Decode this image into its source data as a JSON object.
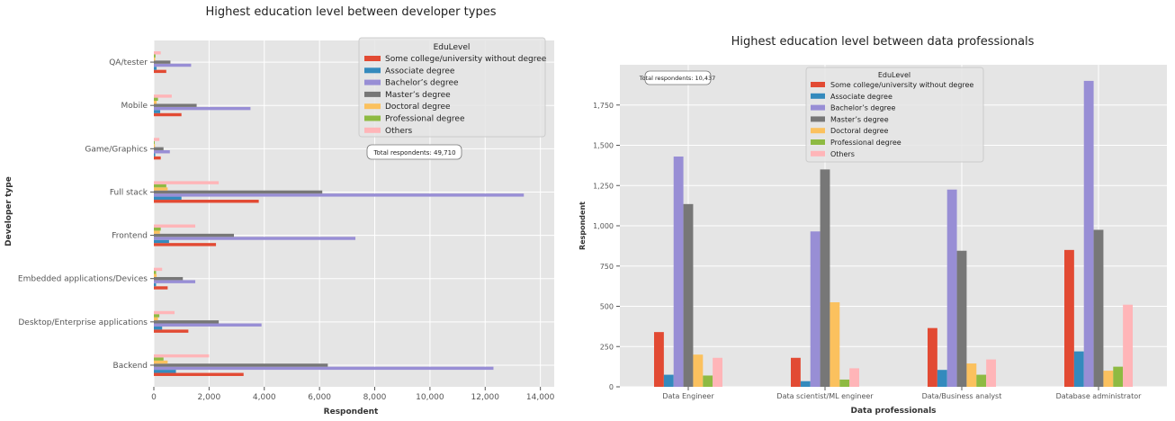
{
  "colors": {
    "Some college/university without degree": "#E24A33",
    "Associate degree": "#348ABD",
    "Bachelor’s degree": "#988ED5",
    "Master’s degree": "#777777",
    "Doctoral degree": "#FBC15E",
    "Professional degree": "#8EBA42",
    "Others": "#FFB5B8"
  },
  "chart_data": [
    {
      "type": "bar",
      "orientation": "horizontal",
      "title": "Highest education level between developer types",
      "xlabel": "Respondent",
      "ylabel": "Developer type",
      "xlim": [
        0,
        14500
      ],
      "xticks": [
        0,
        2000,
        4000,
        6000,
        8000,
        10000,
        12000,
        14000
      ],
      "xtick_labels": [
        "0",
        "2,000",
        "4,000",
        "6,000",
        "8,000",
        "10,000",
        "12,000",
        "14,000"
      ],
      "grid": true,
      "legend_title": "EduLevel",
      "legend_position": "top-right",
      "annotation": "Total respondents: 49,710",
      "categories": [
        "Backend",
        "Desktop/Enterprise applications",
        "Embedded applications/Devices",
        "Frontend",
        "Full stack",
        "Game/Graphics",
        "Mobile",
        "QA/tester"
      ],
      "series": [
        {
          "name": "Some college/university without degree",
          "values": [
            3250,
            1250,
            500,
            2250,
            3800,
            250,
            1000,
            450
          ]
        },
        {
          "name": "Associate degree",
          "values": [
            800,
            300,
            80,
            550,
            1000,
            50,
            230,
            100
          ]
        },
        {
          "name": "Bachelor’s degree",
          "values": [
            12300,
            3900,
            1500,
            7300,
            13400,
            580,
            3500,
            1350
          ]
        },
        {
          "name": "Master’s degree",
          "values": [
            6300,
            2350,
            1050,
            2900,
            6100,
            350,
            1550,
            600
          ]
        },
        {
          "name": "Doctoral degree",
          "values": [
            500,
            150,
            100,
            220,
            500,
            40,
            100,
            50
          ]
        },
        {
          "name": "Professional degree",
          "values": [
            350,
            200,
            80,
            250,
            450,
            30,
            150,
            60
          ]
        },
        {
          "name": "Others",
          "values": [
            2000,
            750,
            300,
            1500,
            2350,
            200,
            650,
            250
          ]
        }
      ]
    },
    {
      "type": "bar",
      "orientation": "vertical",
      "title": "Highest education level between data professionals",
      "xlabel": "Data professionals",
      "ylabel": "Respondent",
      "ylim": [
        0,
        2000
      ],
      "yticks": [
        0,
        250,
        500,
        750,
        1000,
        1250,
        1500,
        1750
      ],
      "ytick_labels": [
        "0",
        "250",
        "500",
        "750",
        "1,000",
        "1,250",
        "1,500",
        "1,750"
      ],
      "grid": true,
      "legend_title": "EduLevel",
      "legend_position": "top-center",
      "annotation": "Total respondents: 10,437",
      "categories": [
        "Data Engineer",
        "Data scientist/ML engineer",
        "Data/Business analyst",
        "Database administrator"
      ],
      "series": [
        {
          "name": "Some college/university without degree",
          "values": [
            340,
            180,
            365,
            850
          ]
        },
        {
          "name": "Associate degree",
          "values": [
            75,
            35,
            105,
            220
          ]
        },
        {
          "name": "Bachelor’s degree",
          "values": [
            1430,
            965,
            1225,
            1900
          ]
        },
        {
          "name": "Master’s degree",
          "values": [
            1135,
            1350,
            845,
            975
          ]
        },
        {
          "name": "Doctoral degree",
          "values": [
            200,
            525,
            145,
            100
          ]
        },
        {
          "name": "Professional degree",
          "values": [
            70,
            45,
            75,
            125
          ]
        },
        {
          "name": "Others",
          "values": [
            180,
            115,
            170,
            510
          ]
        }
      ]
    }
  ]
}
